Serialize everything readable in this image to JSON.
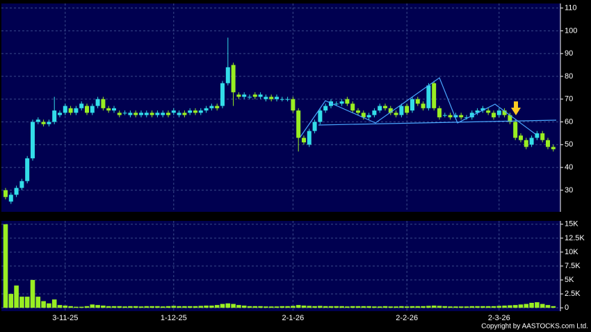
{
  "chart_data": {
    "type": "candlestick",
    "source": "Copyright by AASTOCKS.com Ltd.",
    "categories": [
      null,
      null,
      null,
      null,
      null,
      null,
      null,
      null,
      null,
      null,
      null,
      "3-11-25",
      null,
      null,
      null,
      null,
      null,
      null,
      null,
      null,
      null,
      null,
      null,
      null,
      null,
      null,
      null,
      null,
      null,
      null,
      null,
      "1-12-25",
      null,
      null,
      null,
      null,
      null,
      null,
      null,
      null,
      null,
      null,
      null,
      null,
      null,
      null,
      null,
      null,
      null,
      null,
      null,
      null,
      null,
      "2-1-26",
      null,
      null,
      null,
      null,
      null,
      null,
      null,
      null,
      null,
      null,
      null,
      null,
      null,
      null,
      null,
      null,
      null,
      null,
      null,
      null,
      "2-2-26",
      null,
      null,
      null,
      null,
      null,
      null,
      null,
      null,
      null,
      null,
      null,
      null,
      null,
      null,
      null,
      null,
      "2-3-26",
      null,
      null,
      null,
      null,
      null,
      null,
      null,
      null,
      null,
      null
    ],
    "open": [
      30,
      25,
      28,
      31,
      34,
      44,
      60,
      60,
      59,
      60,
      63,
      64,
      66,
      64,
      66,
      67,
      64,
      67,
      70,
      66,
      65,
      64,
      64,
      63,
      64,
      63,
      63,
      64,
      63,
      63,
      64,
      64,
      63,
      64,
      64,
      65,
      64,
      65,
      66,
      67,
      67,
      77,
      85,
      72,
      71,
      71,
      72,
      71,
      70,
      71,
      70,
      70,
      70,
      70,
      65,
      53,
      50,
      56,
      60,
      65,
      67,
      68,
      68,
      70,
      68,
      65,
      64,
      62,
      63,
      65,
      67,
      66,
      64,
      63,
      67,
      65,
      70,
      68,
      66,
      77,
      66,
      63,
      63,
      62,
      63,
      62,
      62,
      64,
      65,
      65,
      64,
      63,
      65,
      63,
      60,
      54,
      52,
      50,
      53,
      55,
      52,
      49
    ],
    "high": [
      31,
      29,
      32,
      35,
      45,
      61,
      62,
      61,
      61,
      71,
      65,
      68,
      67,
      67,
      69,
      68,
      68,
      71,
      71,
      67,
      67,
      65,
      65,
      65,
      65,
      65,
      65,
      65,
      65,
      65,
      65,
      66,
      65,
      65,
      66,
      66,
      66,
      67,
      68,
      68,
      78,
      97,
      86,
      73,
      73,
      72,
      73,
      73,
      72,
      72,
      72,
      71,
      71,
      71,
      66,
      54,
      57,
      61,
      66,
      68,
      70,
      69,
      70,
      71,
      69,
      66,
      65,
      64,
      66,
      68,
      68,
      67,
      65,
      68,
      68,
      71,
      71,
      69,
      77,
      78,
      67,
      64,
      64,
      64,
      64,
      63,
      65,
      66,
      67,
      66,
      65,
      66,
      66,
      64,
      61,
      55,
      53,
      54,
      56,
      56,
      53,
      50
    ],
    "low": [
      26,
      24,
      27,
      30,
      33,
      43,
      59,
      58,
      58,
      59,
      62,
      63,
      63,
      63,
      65,
      63,
      63,
      66,
      65,
      64,
      64,
      62,
      63,
      62,
      62,
      62,
      62,
      62,
      62,
      62,
      62,
      63,
      62,
      62,
      63,
      63,
      63,
      64,
      65,
      65,
      66,
      76,
      67,
      70,
      70,
      70,
      70,
      70,
      69,
      69,
      69,
      69,
      69,
      64,
      47,
      50,
      49,
      55,
      59,
      64,
      66,
      67,
      67,
      67,
      64,
      63,
      61,
      61,
      62,
      64,
      65,
      63,
      62,
      62,
      63,
      64,
      67,
      65,
      65,
      65,
      61,
      62,
      61,
      61,
      61,
      61,
      61,
      63,
      64,
      63,
      61,
      62,
      62,
      59,
      52,
      51,
      48,
      49,
      52,
      51,
      48,
      47
    ],
    "close": [
      27,
      28,
      31,
      34,
      44,
      60,
      61,
      59,
      60,
      65,
      64,
      67,
      64,
      66,
      68,
      64,
      67,
      70,
      66,
      65,
      66,
      63,
      64,
      64,
      63,
      64,
      64,
      63,
      64,
      64,
      63,
      65,
      64,
      63,
      65,
      64,
      65,
      66,
      67,
      66,
      77,
      84,
      73,
      71,
      72,
      71,
      71,
      72,
      71,
      70,
      71,
      70,
      70,
      65,
      53,
      51,
      56,
      60,
      65,
      67,
      69,
      68,
      69,
      68,
      65,
      64,
      62,
      63,
      65,
      67,
      66,
      64,
      63,
      67,
      64,
      70,
      68,
      66,
      76,
      66,
      62,
      63,
      62,
      63,
      62,
      62,
      64,
      65,
      66,
      64,
      62,
      65,
      63,
      60,
      53,
      52,
      49,
      53,
      55,
      52,
      49,
      48
    ],
    "volume": [
      15000,
      2500,
      4000,
      2000,
      2000,
      5000,
      2000,
      1200,
      800,
      1500,
      500,
      400,
      300,
      200,
      200,
      300,
      600,
      500,
      400,
      300,
      300,
      300,
      250,
      300,
      300,
      250,
      300,
      300,
      300,
      250,
      300,
      350,
      300,
      300,
      300,
      300,
      350,
      400,
      400,
      500,
      700,
      800,
      700,
      500,
      400,
      300,
      300,
      300,
      250,
      250,
      250,
      300,
      300,
      350,
      500,
      400,
      350,
      300,
      350,
      300,
      300,
      300,
      300,
      250,
      300,
      300,
      300,
      300,
      250,
      250,
      300,
      250,
      250,
      300,
      250,
      300,
      300,
      300,
      350,
      400,
      350,
      300,
      250,
      250,
      250,
      250,
      300,
      300,
      300,
      300,
      300,
      350,
      400,
      450,
      500,
      600,
      700,
      900,
      1000,
      700,
      500,
      300
    ],
    "up_color": "#33dde8",
    "down_color": "#99ee22",
    "volume_color": "#99ee22",
    "ylim": [
      20.5,
      112
    ],
    "yticks": [
      30,
      40,
      50,
      60,
      70,
      80,
      90,
      100,
      110
    ],
    "volume_ylim": [
      -600,
      15600
    ],
    "volume_yticks": [
      0,
      {
        "value": 2500,
        "label": "2.5K"
      },
      {
        "value": 5000,
        "label": "5K"
      },
      {
        "value": 7500,
        "label": "7.5K"
      },
      {
        "value": 10000,
        "label": "10K"
      },
      {
        "value": 12500,
        "label": "12.5K"
      },
      {
        "value": 15000,
        "label": "15K"
      }
    ],
    "grid": true
  }
}
